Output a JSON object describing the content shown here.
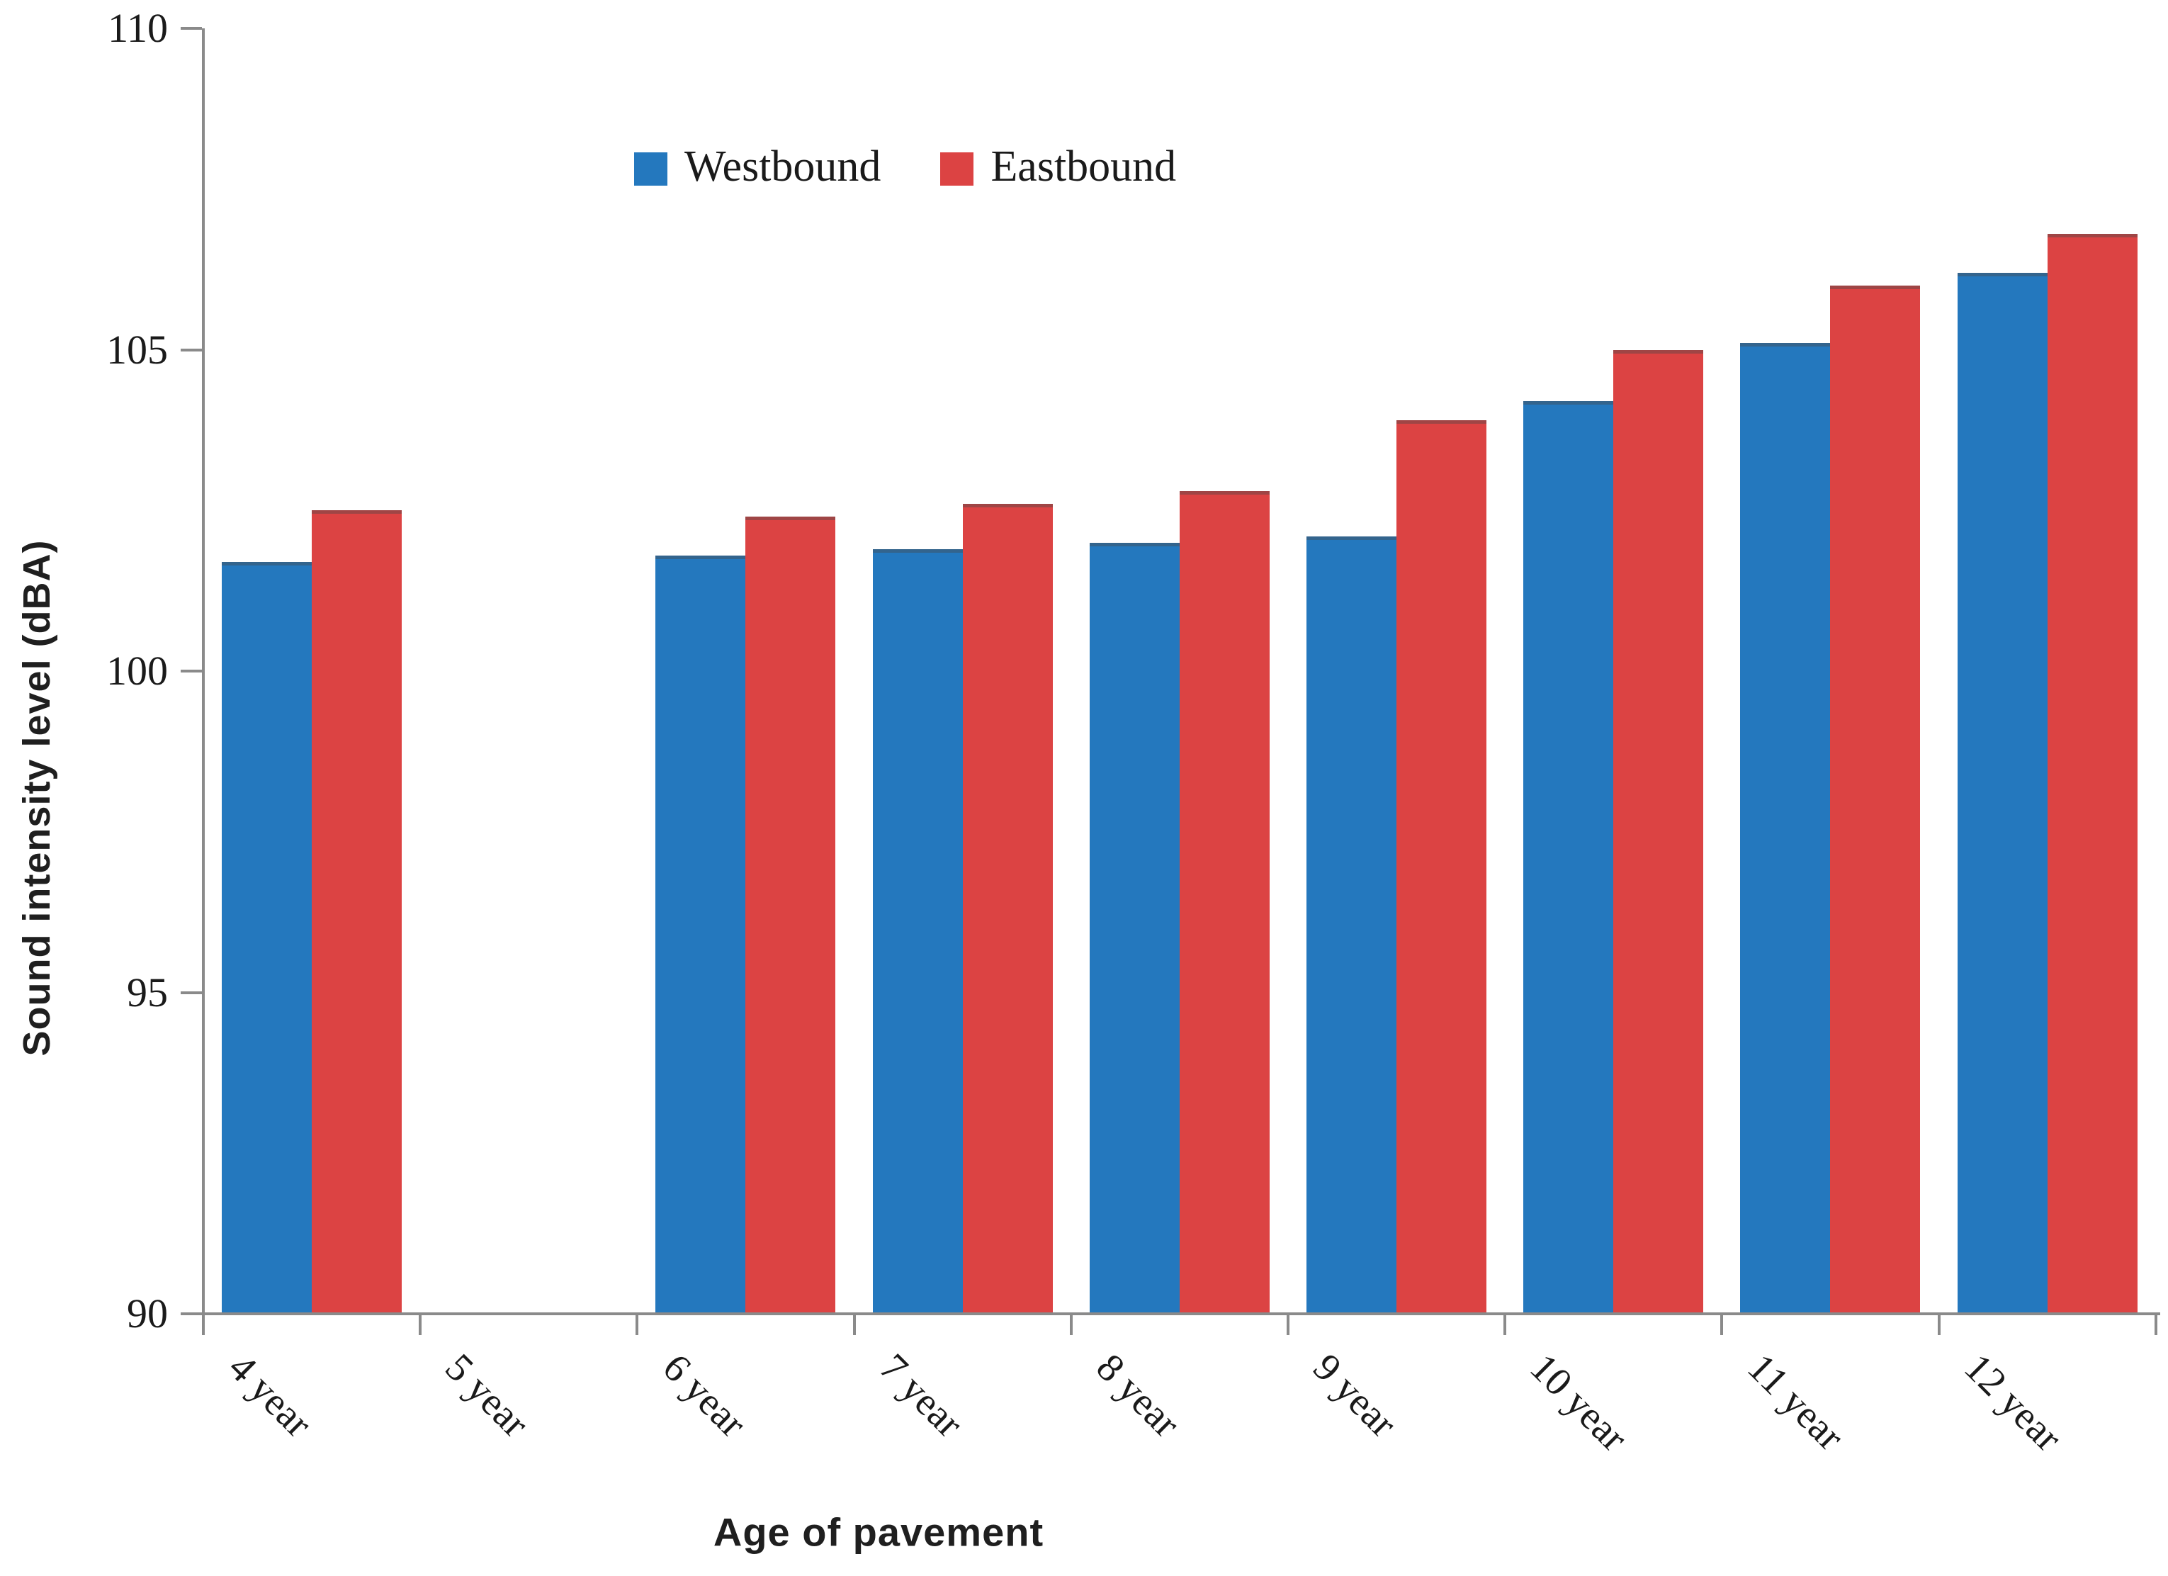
{
  "chart_data": {
    "type": "bar",
    "title": "",
    "categories": [
      "4 year",
      "5 year",
      "6 year",
      "7 year",
      "8 year",
      "9 year",
      "10 year",
      "11 year",
      "12 year"
    ],
    "series": [
      {
        "name": "Westbound",
        "color": "#2478be",
        "values": [
          101.7,
          null,
          101.8,
          101.9,
          102.0,
          102.1,
          104.2,
          105.1,
          106.2
        ]
      },
      {
        "name": "Eastbound",
        "color": "#dc4343",
        "values": [
          102.5,
          null,
          102.4,
          102.6,
          102.8,
          103.9,
          105.0,
          106.0,
          106.8
        ]
      }
    ],
    "xlabel": "Age of pavement",
    "ylabel": "Sound intensity level (dBA)",
    "ylim": [
      90,
      110
    ],
    "yticks": [
      90,
      95,
      100,
      105,
      110
    ],
    "bar_baseline": 90,
    "grid": false,
    "legend_position": "top-center",
    "axis_color": "#8a8a8a",
    "text_color": "#1a1a1a"
  }
}
